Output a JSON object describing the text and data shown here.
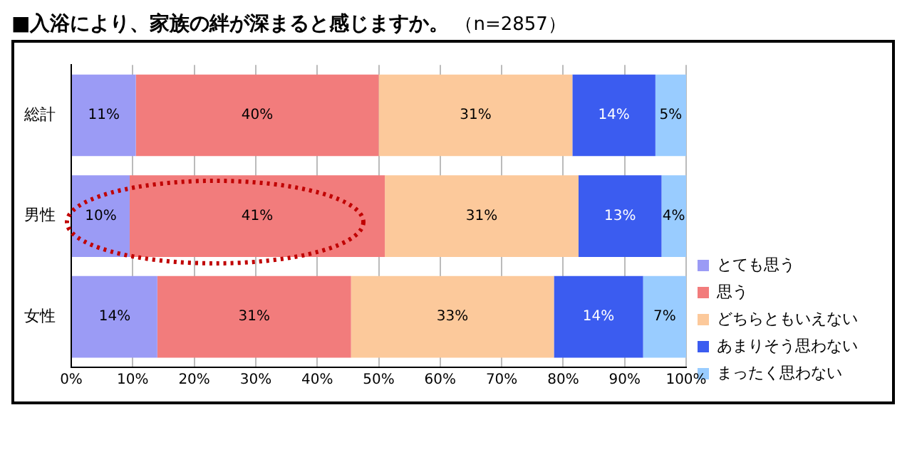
{
  "chart_data": {
    "type": "bar",
    "orientation": "horizontal",
    "stacked": true,
    "title": "■入浴により、家族の絆が深まると感じますか。",
    "subtitle": "（n=2857）",
    "categories": [
      "総計",
      "男性",
      "女性"
    ],
    "series": [
      {
        "name": "とても思う",
        "color": "#9b9bf5",
        "values": [
          10.5,
          9.5,
          14
        ],
        "value_labels": [
          "11%",
          "10%",
          "14%"
        ]
      },
      {
        "name": "思う",
        "color": "#f27c7c",
        "values": [
          39.5,
          41.5,
          31.5
        ],
        "value_labels": [
          "40%",
          "41%",
          "31%"
        ]
      },
      {
        "name": "どちらともいえない",
        "color": "#fcc99b",
        "values": [
          31.5,
          31.5,
          33
        ],
        "value_labels": [
          "31%",
          "31%",
          "33%"
        ]
      },
      {
        "name": "あまりそう思わない",
        "color": "#3b5cf0",
        "values": [
          13.5,
          13.5,
          14.5
        ],
        "value_labels": [
          "14%",
          "13%",
          "14%"
        ]
      },
      {
        "name": "まったく思わない",
        "color": "#99ccff",
        "values": [
          5,
          4,
          7
        ],
        "value_labels": [
          "5%",
          "4%",
          "7%"
        ]
      }
    ],
    "xlim": [
      0,
      100
    ],
    "xticks": [
      {
        "value": 0,
        "label": "0%"
      },
      {
        "value": 10,
        "label": "10%"
      },
      {
        "value": 20,
        "label": "20%"
      },
      {
        "value": 30,
        "label": "30%"
      },
      {
        "value": 40,
        "label": "40%"
      },
      {
        "value": 50,
        "label": "50%"
      },
      {
        "value": 60,
        "label": "60%"
      },
      {
        "value": 70,
        "label": "70%"
      },
      {
        "value": 80,
        "label": "80%"
      },
      {
        "value": 90,
        "label": "90%"
      },
      {
        "value": 100,
        "label": "100%"
      }
    ],
    "grid": "x",
    "legend": "right"
  }
}
